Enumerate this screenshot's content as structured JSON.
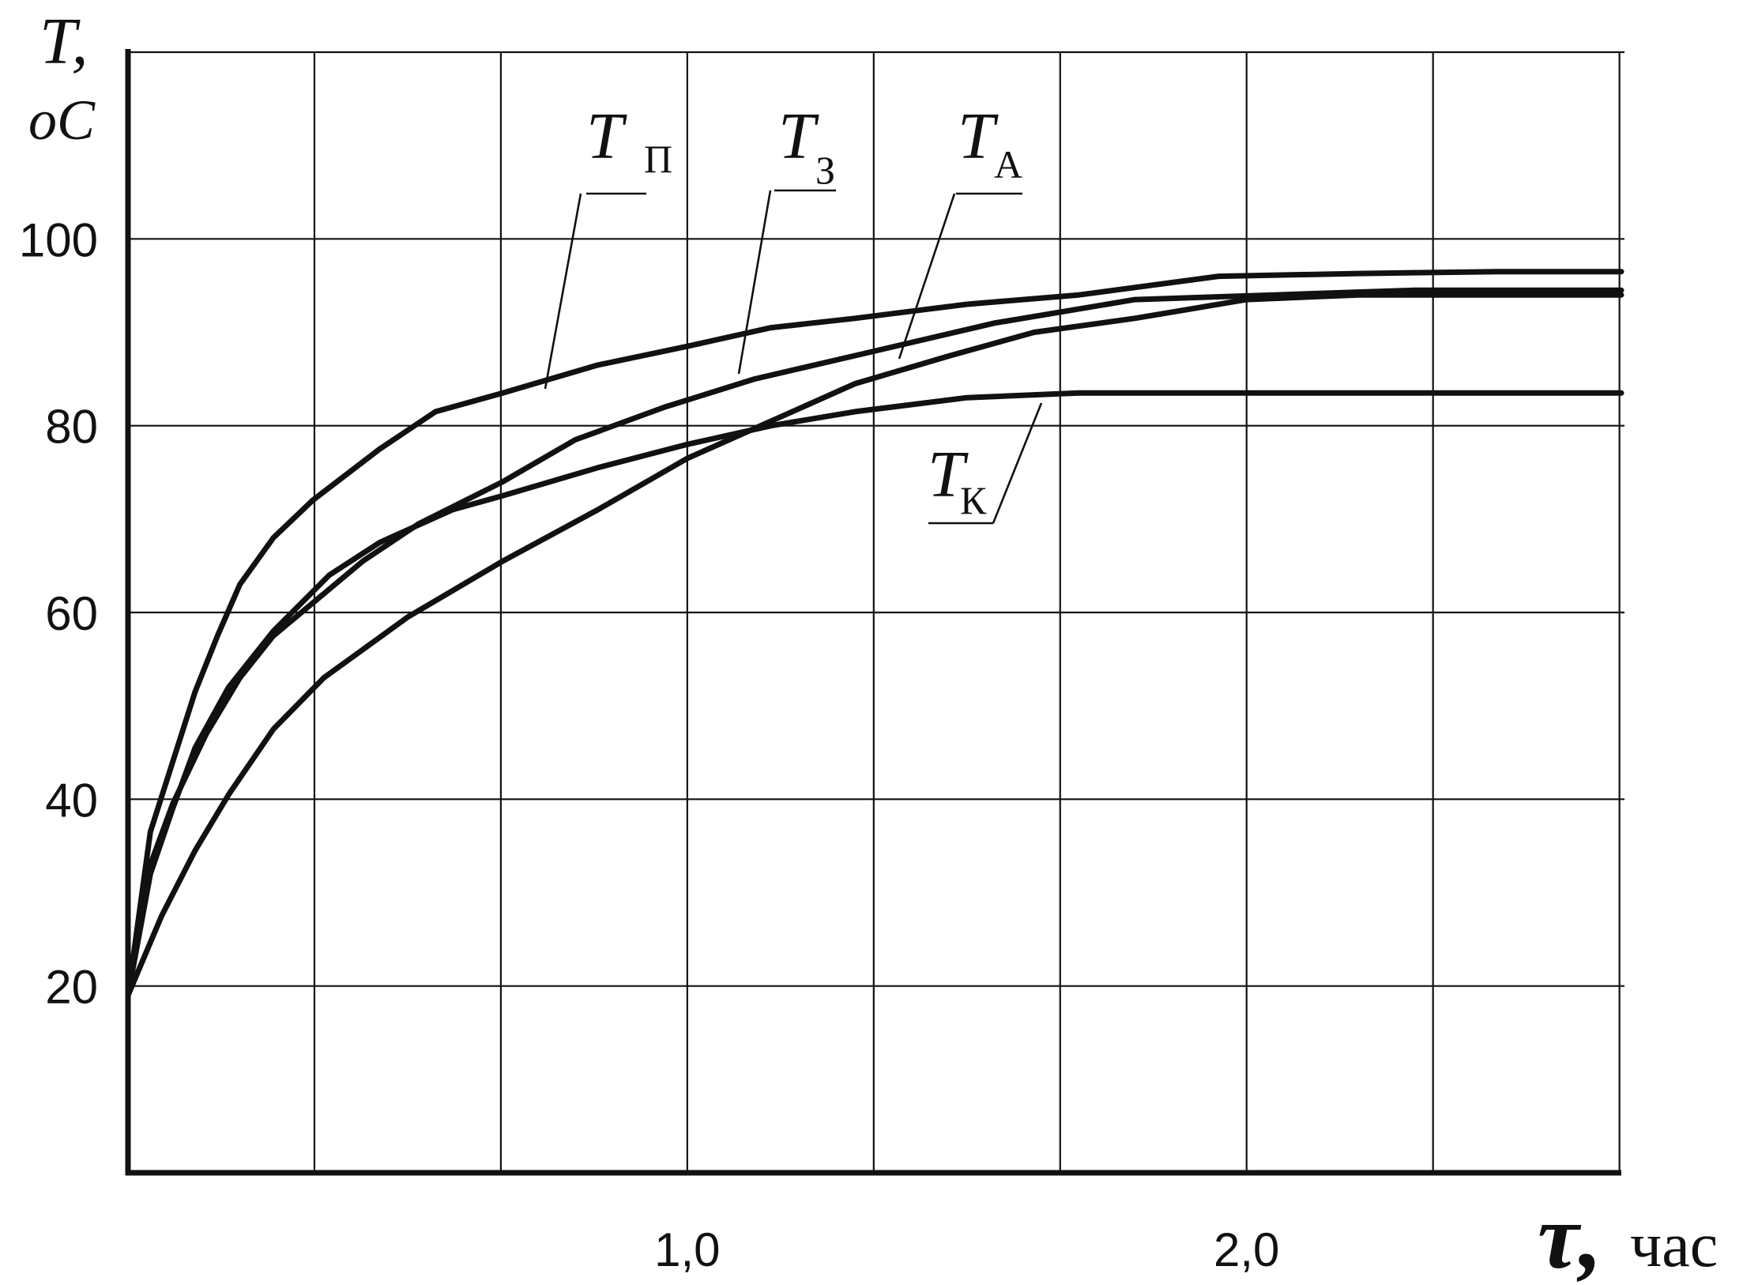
{
  "chart_data": {
    "type": "line",
    "title": "",
    "ylabel_symbol": "T,",
    "ylabel_unit": "oC",
    "xlabel_symbol": "τ,",
    "xlabel_unit": "час",
    "xlim": [
      0,
      2.67
    ],
    "ylim": [
      0,
      120
    ],
    "grid": true,
    "xticks": [
      {
        "value": 1.0,
        "label": "1,0"
      },
      {
        "value": 2.0,
        "label": "2,0"
      }
    ],
    "yticks": [
      {
        "value": 20,
        "label": "20"
      },
      {
        "value": 40,
        "label": "40"
      },
      {
        "value": 60,
        "label": "60"
      },
      {
        "value": 80,
        "label": "80"
      },
      {
        "value": 100,
        "label": "100"
      }
    ],
    "series": [
      {
        "name": "T",
        "subscript": "П",
        "x": [
          0,
          0.04,
          0.08,
          0.12,
          0.16,
          0.2,
          0.26,
          0.33,
          0.45,
          0.55,
          0.67,
          0.84,
          1.0,
          1.15,
          1.3,
          1.5,
          1.7,
          1.95,
          2.2,
          2.45,
          2.67
        ],
        "y": [
          19,
          36.5,
          44,
          51.5,
          57.5,
          63,
          68,
          72,
          77.5,
          81.5,
          83.5,
          86.5,
          88.5,
          90.5,
          91.5,
          93,
          94,
          96,
          96.3,
          96.5,
          96.5
        ]
      },
      {
        "name": "T",
        "subscript": "З",
        "x": [
          0,
          0.04,
          0.08,
          0.14,
          0.2,
          0.26,
          0.33,
          0.42,
          0.52,
          0.67,
          0.8,
          0.96,
          1.12,
          1.3,
          1.55,
          1.8,
          2.05,
          2.3,
          2.67
        ],
        "y": [
          19,
          33,
          39.5,
          47,
          53,
          57.5,
          61,
          65.5,
          69.5,
          74,
          78.5,
          82,
          85,
          87.5,
          91,
          93.5,
          94,
          94.5,
          94.5
        ]
      },
      {
        "name": "T",
        "subscript": "А",
        "x": [
          0,
          0.06,
          0.12,
          0.18,
          0.26,
          0.35,
          0.5,
          0.67,
          0.84,
          1.0,
          1.15,
          1.3,
          1.47,
          1.62,
          1.8,
          2.0,
          2.2,
          2.67
        ],
        "y": [
          19,
          27.5,
          34.5,
          40.5,
          47.5,
          53,
          59.5,
          65.5,
          71,
          76.5,
          80.5,
          84.5,
          87.5,
          90,
          91.5,
          93.5,
          94,
          94
        ]
      },
      {
        "name": "T",
        "subscript": "К",
        "x": [
          0,
          0.04,
          0.08,
          0.12,
          0.18,
          0.26,
          0.36,
          0.45,
          0.58,
          0.67,
          0.84,
          1.0,
          1.15,
          1.3,
          1.5,
          1.7,
          2.1,
          2.67
        ],
        "y": [
          19,
          32,
          39,
          45.5,
          52,
          58,
          64,
          67.5,
          71,
          72.5,
          75.5,
          78,
          80,
          81.5,
          83,
          83.5,
          83.5,
          83.5
        ]
      }
    ],
    "labels": [
      {
        "name": "T",
        "subscript": "П"
      },
      {
        "name": "T",
        "subscript": "З"
      },
      {
        "name": "T",
        "subscript": "А"
      },
      {
        "name": "T",
        "subscript": "К"
      }
    ]
  }
}
